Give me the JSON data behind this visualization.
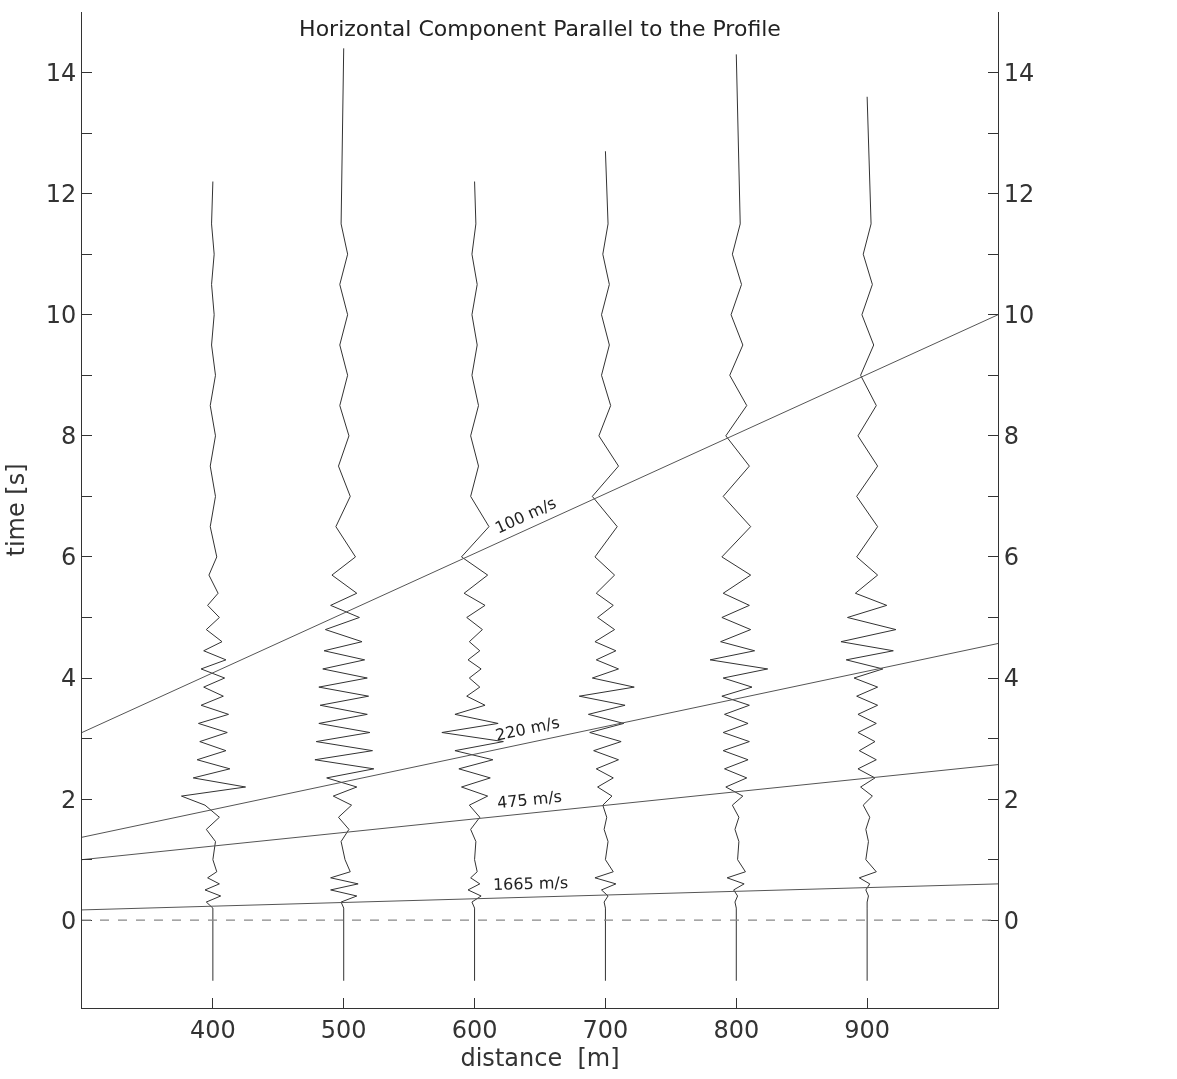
{
  "chart_data": {
    "type": "line",
    "title": "Horizontal Component Parallel to the Profile",
    "xlabel": "distance  [m]",
    "ylabel": "time [s]",
    "xlim": [
      300,
      1000
    ],
    "xticks": [
      400,
      500,
      600,
      700,
      800,
      900
    ],
    "ylim": [
      -1.45,
      15
    ],
    "yticks": [
      0,
      {
        "value": 1,
        "label": null
      },
      2,
      {
        "value": 3,
        "label": null
      },
      4,
      {
        "value": 5,
        "label": null
      },
      6,
      {
        "value": 7,
        "label": null
      },
      8,
      {
        "value": 9,
        "label": null
      },
      10,
      {
        "value": 11,
        "label": null
      },
      12,
      {
        "value": 13,
        "label": null
      },
      14
    ],
    "y2lim": [
      -1.45,
      15
    ],
    "y2ticks": [
      0,
      {
        "value": 1,
        "label": null
      },
      2,
      {
        "value": 3,
        "label": null
      },
      4,
      {
        "value": 5,
        "label": null
      },
      6,
      {
        "value": 7,
        "label": null
      },
      8,
      {
        "value": 9,
        "label": null
      },
      10,
      {
        "value": 11,
        "label": null
      },
      12,
      {
        "value": 13,
        "label": null
      },
      14
    ],
    "grid": false,
    "legend": false,
    "marker": "none",
    "line_style": "solid",
    "series": [
      {
        "type": "line",
        "color": "#333333",
        "x": [
          400,
          400,
          395,
          406,
          394,
          405,
          396,
          403,
          400,
          402,
          395,
          405,
          394,
          376,
          425,
          385,
          413,
          388,
          410,
          390,
          411,
          389,
          412,
          391,
          408,
          393,
          409,
          391,
          410,
          393,
          407,
          395,
          405,
          396,
          404,
          397,
          403,
          398,
          402,
          398,
          402,
          398,
          402,
          399,
          401,
          399,
          401,
          399,
          400
        ],
        "values": [
          -1,
          0.2,
          0.3,
          0.4,
          0.5,
          0.6,
          0.7,
          0.8,
          1.0,
          1.3,
          1.5,
          1.7,
          1.9,
          2.05,
          2.2,
          2.35,
          2.5,
          2.65,
          2.8,
          2.95,
          3.1,
          3.25,
          3.4,
          3.55,
          3.7,
          3.85,
          4.0,
          4.15,
          4.3,
          4.45,
          4.6,
          4.8,
          5.0,
          5.2,
          5.4,
          5.7,
          6.0,
          6.5,
          7.0,
          7.5,
          8.0,
          8.5,
          9.0,
          9.5,
          10,
          10.5,
          11,
          11.5,
          12.2
        ]
      },
      {
        "type": "line",
        "color": "#333333",
        "x": [
          500,
          500,
          498,
          510,
          490,
          511,
          490,
          505,
          501,
          498,
          504,
          496,
          506,
          492,
          510,
          487,
          523,
          478,
          522,
          479,
          520,
          481,
          518,
          482,
          519,
          481,
          518,
          484,
          516,
          485,
          514,
          486,
          512,
          490,
          510,
          491,
          509,
          494,
          505,
          496,
          504,
          497,
          503,
          497,
          503,
          497,
          503,
          498,
          500
        ],
        "values": [
          -1,
          0.2,
          0.3,
          0.4,
          0.5,
          0.6,
          0.7,
          0.8,
          1.0,
          1.3,
          1.5,
          1.7,
          1.9,
          2.05,
          2.2,
          2.35,
          2.5,
          2.65,
          2.8,
          2.95,
          3.1,
          3.25,
          3.4,
          3.55,
          3.7,
          3.85,
          4.0,
          4.15,
          4.3,
          4.45,
          4.6,
          4.8,
          5.0,
          5.2,
          5.4,
          5.7,
          6.0,
          6.5,
          7.0,
          7.5,
          8.0,
          8.5,
          9.0,
          9.5,
          10,
          10.5,
          11,
          11.5,
          14.4
        ]
      },
      {
        "type": "line",
        "color": "#333333",
        "x": [
          600,
          600,
          598,
          605,
          595,
          604,
          597,
          602,
          600,
          601,
          597,
          604,
          596,
          610,
          590,
          612,
          588,
          614,
          585,
          622,
          575,
          618,
          585,
          608,
          594,
          604,
          596,
          605,
          595,
          604,
          596,
          606,
          594,
          608,
          592,
          610,
          590,
          611,
          597,
          603,
          597,
          603,
          598,
          602,
          598,
          602,
          598,
          601,
          600
        ],
        "values": [
          -1,
          0.2,
          0.3,
          0.4,
          0.5,
          0.6,
          0.7,
          0.8,
          1.0,
          1.3,
          1.5,
          1.7,
          1.9,
          2.05,
          2.2,
          2.35,
          2.5,
          2.65,
          2.8,
          2.95,
          3.1,
          3.25,
          3.4,
          3.55,
          3.7,
          3.85,
          4.0,
          4.15,
          4.3,
          4.45,
          4.6,
          4.8,
          5.0,
          5.2,
          5.4,
          5.7,
          6.0,
          6.5,
          7.0,
          7.5,
          8.0,
          8.5,
          9.0,
          9.5,
          10,
          10.5,
          11,
          11.5,
          12.2
        ]
      },
      {
        "type": "line",
        "color": "#333333",
        "x": [
          700,
          700,
          699,
          702,
          697,
          708,
          692,
          706,
          700,
          702,
          699,
          701,
          698,
          705,
          694,
          706,
          693,
          710,
          691,
          712,
          688,
          714,
          687,
          715,
          680,
          722,
          690,
          710,
          693,
          708,
          692,
          707,
          694,
          706,
          693,
          707,
          692,
          709,
          690,
          710,
          695,
          704,
          697,
          703,
          697,
          703,
          698,
          702,
          700
        ],
        "values": [
          -1,
          0.2,
          0.3,
          0.4,
          0.5,
          0.6,
          0.7,
          0.8,
          1.0,
          1.3,
          1.5,
          1.7,
          1.9,
          2.05,
          2.2,
          2.35,
          2.5,
          2.65,
          2.8,
          2.95,
          3.1,
          3.25,
          3.4,
          3.55,
          3.7,
          3.85,
          4.0,
          4.15,
          4.3,
          4.45,
          4.6,
          4.8,
          5.0,
          5.2,
          5.4,
          5.7,
          6.0,
          6.5,
          7.0,
          7.5,
          8.0,
          8.5,
          9.0,
          9.5,
          10,
          10.5,
          11,
          11.5,
          12.7
        ]
      },
      {
        "type": "line",
        "color": "#333333",
        "x": [
          800,
          800,
          799,
          801,
          798,
          806,
          793,
          807,
          801,
          802,
          799,
          802,
          797,
          805,
          792,
          808,
          791,
          809,
          790,
          810,
          790,
          809,
          791,
          810,
          789,
          812,
          790,
          824,
          780,
          814,
          788,
          811,
          789,
          810,
          790,
          811,
          789,
          811,
          790,
          810,
          792,
          808,
          795,
          805,
          796,
          804,
          797,
          803,
          800
        ],
        "values": [
          -1,
          0.2,
          0.3,
          0.4,
          0.5,
          0.6,
          0.7,
          0.8,
          1.0,
          1.3,
          1.5,
          1.7,
          1.9,
          2.05,
          2.2,
          2.35,
          2.5,
          2.65,
          2.8,
          2.95,
          3.1,
          3.25,
          3.4,
          3.55,
          3.7,
          3.85,
          4.0,
          4.15,
          4.3,
          4.45,
          4.6,
          4.8,
          5.0,
          5.2,
          5.4,
          5.7,
          6.0,
          6.5,
          7.0,
          7.5,
          8.0,
          8.5,
          9.0,
          9.5,
          10,
          10.5,
          11,
          11.5,
          14.3
        ]
      },
      {
        "type": "line",
        "color": "#333333",
        "x": [
          900,
          900,
          900,
          901,
          899,
          902,
          894,
          907,
          899,
          901,
          899,
          902,
          897,
          904,
          895,
          906,
          893,
          907,
          894,
          906,
          893,
          907,
          893,
          908,
          892,
          908,
          890,
          912,
          884,
          920,
          880,
          922,
          885,
          915,
          891,
          908,
          892,
          908,
          892,
          908,
          893,
          907,
          895,
          905,
          896,
          904,
          897,
          903,
          900
        ],
        "values": [
          -1,
          0.2,
          0.3,
          0.4,
          0.5,
          0.6,
          0.7,
          0.8,
          1.0,
          1.3,
          1.5,
          1.7,
          1.9,
          2.05,
          2.2,
          2.35,
          2.5,
          2.65,
          2.8,
          2.95,
          3.1,
          3.25,
          3.4,
          3.55,
          3.7,
          3.85,
          4.0,
          4.15,
          4.3,
          4.45,
          4.6,
          4.8,
          5.0,
          5.2,
          5.4,
          5.7,
          6.0,
          6.5,
          7.0,
          7.5,
          8.0,
          8.5,
          9.0,
          9.5,
          10,
          10.5,
          11,
          11.5,
          13.6
        ]
      },
      {
        "name": "100 m/s",
        "color": "#555555",
        "x": [
          300,
          1000
        ],
        "values": [
          3.1,
          10.0
        ]
      },
      {
        "name": "220 m/s",
        "color": "#555555",
        "x": [
          300,
          1000
        ],
        "values": [
          1.37,
          4.57
        ]
      },
      {
        "name": "475 m/s",
        "color": "#555555",
        "x": [
          300,
          1000
        ],
        "values": [
          1.0,
          2.57
        ]
      },
      {
        "name": "1665 m/s",
        "color": "#555555",
        "x": [
          300,
          1000
        ],
        "values": [
          0.17,
          0.6
        ]
      }
    ],
    "ref_lines": [
      {
        "axis": "y",
        "value": 0,
        "color": "#888888",
        "line_style": "dashed"
      }
    ]
  }
}
